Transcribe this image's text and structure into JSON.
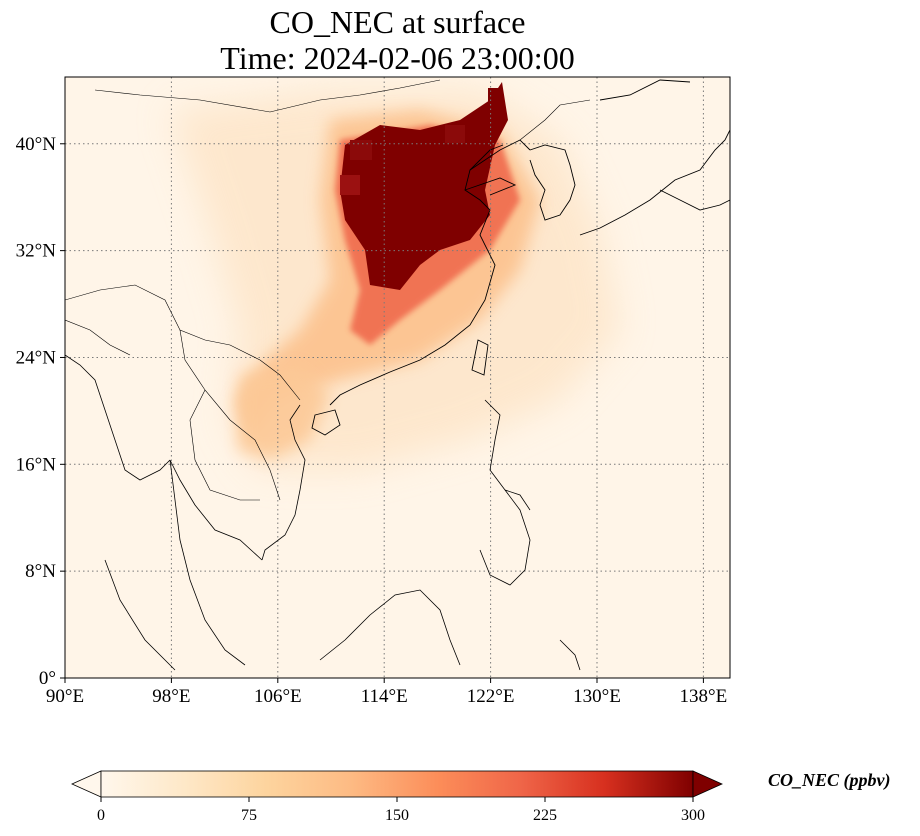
{
  "title": {
    "line1": "CO_NEC at surface",
    "line2": "Time: 2024-02-06 23:00:00"
  },
  "map": {
    "lon_range": [
      90,
      140
    ],
    "lat_range": [
      0,
      45
    ],
    "lon_ticks": [
      {
        "value": 90,
        "label": "90°E"
      },
      {
        "value": 98,
        "label": "98°E"
      },
      {
        "value": 106,
        "label": "106°E"
      },
      {
        "value": 114,
        "label": "114°E"
      },
      {
        "value": 122,
        "label": "122°E"
      },
      {
        "value": 130,
        "label": "130°E"
      },
      {
        "value": 138,
        "label": "138°E"
      }
    ],
    "lat_ticks": [
      {
        "value": 0,
        "label": "0°"
      },
      {
        "value": 8,
        "label": "8°N"
      },
      {
        "value": 16,
        "label": "16°N"
      },
      {
        "value": 24,
        "label": "24°N"
      },
      {
        "value": 32,
        "label": "32°N"
      },
      {
        "value": 40,
        "label": "40°N"
      }
    ],
    "gridlines": "dotted",
    "coastlines": true,
    "borders": true
  },
  "colorbar": {
    "colormap": "OrRd",
    "min": 0,
    "max": 300,
    "extend": "both",
    "ticks": [
      {
        "value": 0,
        "label": "0"
      },
      {
        "value": 75,
        "label": "75"
      },
      {
        "value": 150,
        "label": "150"
      },
      {
        "value": 225,
        "label": "225"
      },
      {
        "value": 300,
        "label": "300"
      }
    ],
    "title": "CO_NEC (ppbv)"
  }
}
